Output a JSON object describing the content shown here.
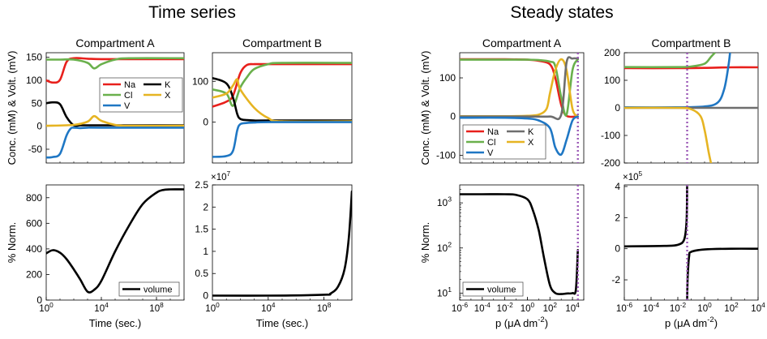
{
  "headers": {
    "left": "Time series",
    "right": "Steady states"
  },
  "colors": {
    "Na": "#e8201c",
    "Cl": "#6ab04c",
    "V": "#1f77c4",
    "K": "#000000",
    "X": "#e6b422",
    "Kss": "#6e6e6e",
    "volume": "#000000",
    "marker": "#9b59b6"
  },
  "chart_data": [
    {
      "id": "ts-a-top",
      "type": "line",
      "title": "Compartment A",
      "ylabel": "Conc. (mM) & Volt. (mV)",
      "xscale": "log",
      "xlim": [
        1,
        10000000000.0
      ],
      "ylim": [
        -80,
        160
      ],
      "yticks": [
        "-50",
        "0",
        "50",
        "100",
        "150"
      ],
      "legend": {
        "placement": "right",
        "entries": [
          "Na",
          "K",
          "Cl",
          "X",
          "V"
        ]
      },
      "series": [
        {
          "name": "Na",
          "x": [
            1,
            3,
            10,
            30,
            100,
            1000.0,
            10000.0,
            1000000.0,
            10000000000.0
          ],
          "y": [
            100,
            95,
            101,
            140,
            148,
            147,
            146,
            146,
            146
          ]
        },
        {
          "name": "Cl",
          "x": [
            1,
            10,
            100,
            1000.0,
            3000.0,
            10000.0,
            100000.0,
            1000000.0,
            10000000000.0
          ],
          "y": [
            145,
            145,
            145,
            138,
            126,
            135,
            145,
            148,
            148
          ]
        },
        {
          "name": "K",
          "x": [
            1,
            3,
            10,
            30,
            100,
            300,
            1000.0,
            10000000000.0
          ],
          "y": [
            50,
            52,
            48,
            20,
            2,
            2,
            2,
            2
          ]
        },
        {
          "name": "X",
          "x": [
            1,
            100,
            1000.0,
            3000.0,
            10000.0,
            100000.0,
            1000000.0,
            10000000000.0
          ],
          "y": [
            1,
            3,
            10,
            22,
            12,
            3,
            1,
            1
          ]
        },
        {
          "name": "V",
          "x": [
            1,
            3,
            10,
            30,
            60,
            100,
            300,
            1000.0,
            10000.0,
            10000000000.0
          ],
          "y": [
            -68,
            -67,
            -60,
            -20,
            -5,
            -3,
            -4,
            -3,
            -3,
            -3
          ]
        }
      ]
    },
    {
      "id": "ts-b-top",
      "type": "line",
      "title": "Compartment B",
      "xscale": "log",
      "xlim": [
        1,
        10000000000.0
      ],
      "ylim": [
        -100,
        170
      ],
      "yticks": [
        "0",
        "100"
      ],
      "series": [
        {
          "name": "Na",
          "x": [
            1,
            10,
            30,
            100,
            300,
            1000.0,
            10000.0,
            10000000000.0
          ],
          "y": [
            38,
            50,
            65,
            120,
            140,
            142,
            142,
            142
          ]
        },
        {
          "name": "Cl",
          "x": [
            1,
            10,
            30,
            100,
            300,
            1000.0,
            10000.0,
            100000.0,
            10000000000.0
          ],
          "y": [
            80,
            70,
            40,
            85,
            110,
            130,
            142,
            145,
            145
          ]
        },
        {
          "name": "K",
          "x": [
            1,
            10,
            30,
            60,
            100,
            300,
            1000.0,
            10000.0,
            10000000000.0
          ],
          "y": [
            108,
            95,
            60,
            20,
            8,
            5,
            4,
            4,
            4
          ]
        },
        {
          "name": "X",
          "x": [
            1,
            10,
            30,
            60,
            100,
            1000.0,
            10000.0,
            100000.0,
            10000000000.0
          ],
          "y": [
            60,
            70,
            90,
            105,
            80,
            35,
            10,
            2,
            2
          ]
        },
        {
          "name": "V",
          "x": [
            1,
            10,
            30,
            60,
            100,
            300,
            1000.0,
            10000.0,
            10000000000.0
          ],
          "y": [
            -85,
            -83,
            -70,
            -20,
            -5,
            -2,
            -1,
            0,
            0
          ]
        }
      ]
    },
    {
      "id": "ts-a-bottom",
      "type": "line",
      "ylabel": "% Norm.",
      "xlabel": "Time (sec.)",
      "xscale": "log",
      "xlim": [
        1,
        10000000000.0
      ],
      "ylim": [
        0,
        900
      ],
      "xticks": [
        1,
        10000,
        100000000
      ],
      "xticklabels": [
        "10",
        "10",
        "10"
      ],
      "xtickexp": [
        "0",
        "4",
        "8"
      ],
      "yticks": [
        "0",
        "200",
        "400",
        "600",
        "800"
      ],
      "legend": {
        "placement": "bottom-right",
        "entries": [
          "volume"
        ]
      },
      "series": [
        {
          "name": "volume",
          "x": [
            1,
            3,
            10,
            30,
            100,
            300,
            1000,
            3000,
            10000.0,
            100000.0,
            1000000.0,
            10000000.0,
            100000000.0,
            300000000.0,
            1000000000.0,
            10000000000.0
          ],
          "y": [
            365,
            390,
            370,
            320,
            240,
            160,
            65,
            80,
            150,
            380,
            580,
            750,
            840,
            860,
            865,
            865
          ]
        }
      ]
    },
    {
      "id": "ts-b-bottom",
      "type": "line",
      "xlabel": "Time (sec.)",
      "xscale": "log",
      "xlim": [
        1,
        10000000000.0
      ],
      "ylim": [
        -0.1,
        2.5
      ],
      "ymultiplier": "×10",
      "ymultexp": "7",
      "xticks": [
        1,
        10000,
        100000000
      ],
      "xticklabels": [
        "10",
        "10",
        "10"
      ],
      "xtickexp": [
        "0",
        "4",
        "8"
      ],
      "yticks": [
        "0",
        "0.5",
        "1",
        "1.5",
        "2",
        "2.5"
      ],
      "series": [
        {
          "name": "volume",
          "x": [
            1,
            10000.0,
            100000000.0,
            300000000.0,
            1000000000.0,
            3000000000.0,
            6000000000.0,
            10000000000.0
          ],
          "y": [
            0,
            0,
            0.02,
            0.05,
            0.2,
            0.6,
            1.3,
            2.35
          ]
        }
      ]
    },
    {
      "id": "ss-a-top",
      "type": "line",
      "title": "Compartment A",
      "ylabel": "Conc. (mM) & Volt. (mV)",
      "xscale": "log",
      "xlim": [
        1e-06,
        100000.0
      ],
      "ylim": [
        -120,
        165
      ],
      "yticks": [
        "-100",
        "0",
        "100"
      ],
      "marker_x": 30000,
      "legend": {
        "placement": "bottom-left",
        "entries": [
          "Na",
          "K",
          "Cl",
          "X",
          "V"
        ]
      },
      "series": [
        {
          "name": "Na",
          "x": [
            1e-06,
            0.01,
            1,
            10,
            100,
            300,
            1000,
            3000,
            30000
          ],
          "y": [
            148,
            148,
            147,
            144,
            135,
            100,
            30,
            2,
            0
          ]
        },
        {
          "name": "Cl",
          "x": [
            1e-06,
            0.01,
            1,
            10,
            100,
            300,
            1000,
            3000,
            10000,
            30000
          ],
          "y": [
            147,
            147,
            147,
            146,
            142,
            130,
            50,
            5,
            120,
            148
          ]
        },
        {
          "name": "X",
          "x": [
            1e-06,
            0.01,
            1,
            10,
            50,
            100,
            300,
            1000,
            3000,
            10000,
            30000
          ],
          "y": [
            1,
            1,
            2,
            5,
            20,
            60,
            120,
            148,
            120,
            20,
            0
          ]
        },
        {
          "name": "K",
          "x": [
            1e-06,
            1,
            100,
            1000,
            3000,
            10000,
            30000
          ],
          "y": [
            0,
            0,
            0,
            5,
            140,
            150,
            150
          ]
        },
        {
          "name": "V",
          "x": [
            1e-06,
            0.01,
            1,
            10,
            100,
            300,
            1000,
            3000,
            10000,
            30000
          ],
          "y": [
            -3,
            -3,
            -5,
            -10,
            -30,
            -80,
            -98,
            -60,
            -10,
            0
          ]
        }
      ]
    },
    {
      "id": "ss-b-top",
      "type": "line",
      "title": "Compartment B",
      "xscale": "log",
      "xlim": [
        1e-06,
        10000.0
      ],
      "ylim": [
        -200,
        200
      ],
      "marker_x": 0.05,
      "yticks": [
        "-200",
        "-100",
        "0",
        "100",
        "200"
      ],
      "series": [
        {
          "name": "Na",
          "x": [
            1e-06,
            0.01,
            1,
            100,
            10000.0
          ],
          "y": [
            144,
            144,
            145,
            147,
            147
          ]
        },
        {
          "name": "Cl",
          "x": [
            1e-06,
            0.01,
            0.1,
            1,
            3,
            6
          ],
          "y": [
            148,
            148,
            150,
            160,
            185,
            200
          ]
        },
        {
          "name": "V",
          "x": [
            1e-06,
            0.01,
            1,
            10,
            30,
            60,
            80
          ],
          "y": [
            2,
            2,
            5,
            20,
            70,
            150,
            200
          ]
        },
        {
          "name": "K",
          "x": [
            1e-06,
            1,
            10000.0
          ],
          "y": [
            0,
            0,
            0
          ]
        },
        {
          "name": "X",
          "x": [
            1e-06,
            0.01,
            0.1,
            0.5,
            1,
            2,
            3
          ],
          "y": [
            0,
            0,
            -5,
            -30,
            -80,
            -160,
            -200
          ]
        }
      ]
    },
    {
      "id": "ss-a-bottom",
      "type": "line",
      "ylabel": "% Norm.",
      "xlabel": "p  (μA  dm",
      "xlabelexp": "-2",
      "xlabelend": ")",
      "xscale": "log",
      "xlim": [
        1e-06,
        100000.0
      ],
      "yscale": "log",
      "ylim": [
        7,
        2500
      ],
      "marker_x": 30000,
      "xticks": [
        1e-06,
        0.0001,
        0.01,
        1,
        100,
        10000
      ],
      "xticklabels": [
        "10",
        "10",
        "10",
        "10",
        "10",
        "10"
      ],
      "xtickexp": [
        "-6",
        "-4",
        "-2",
        "0",
        "2",
        "4"
      ],
      "yticks": [
        10,
        100,
        1000
      ],
      "yticklabels": [
        "10",
        "10",
        "10"
      ],
      "ytickexp": [
        "1",
        "2",
        "3"
      ],
      "legend": {
        "placement": "bottom-left",
        "entries": [
          "volume"
        ]
      },
      "series": [
        {
          "name": "volume",
          "x": [
            1e-06,
            0.0001,
            0.01,
            0.1,
            1,
            3,
            10,
            30,
            100,
            300,
            1000,
            3000,
            10000,
            20000,
            30000
          ],
          "y": [
            1550,
            1550,
            1550,
            1500,
            1200,
            700,
            250,
            60,
            15,
            10,
            9.5,
            9.8,
            10,
            12,
            90
          ]
        }
      ]
    },
    {
      "id": "ss-b-bottom",
      "type": "line",
      "xlabel": "p  (μA  dm",
      "xlabelexp": "-2",
      "xlabelend": ")",
      "xscale": "log",
      "xlim": [
        1e-06,
        10000.0
      ],
      "ylim": [
        -3.3,
        4.1
      ],
      "ymultiplier": "×10",
      "ymultexp": "5",
      "marker_x": 0.05,
      "xticks": [
        1e-06,
        0.0001,
        0.01,
        1,
        100,
        10000
      ],
      "xticklabels": [
        "10",
        "10",
        "10",
        "10",
        "10",
        "10"
      ],
      "xtickexp": [
        "-6",
        "-4",
        "-2",
        "0",
        "2",
        "4"
      ],
      "yticks": [
        "-2",
        "0",
        "2",
        "4"
      ],
      "series": [
        {
          "name": "volume",
          "x": [
            1e-06,
            0.001,
            0.01,
            0.03,
            0.045,
            0.05
          ],
          "y": [
            0.15,
            0.18,
            0.25,
            0.6,
            1.8,
            4.1
          ]
        },
        {
          "name": "volume",
          "x": [
            0.05,
            0.055,
            0.07,
            0.1,
            1,
            100,
            10000.0
          ],
          "y": [
            -3.3,
            -1.8,
            -0.5,
            -0.2,
            -0.05,
            0,
            0
          ]
        }
      ]
    }
  ]
}
